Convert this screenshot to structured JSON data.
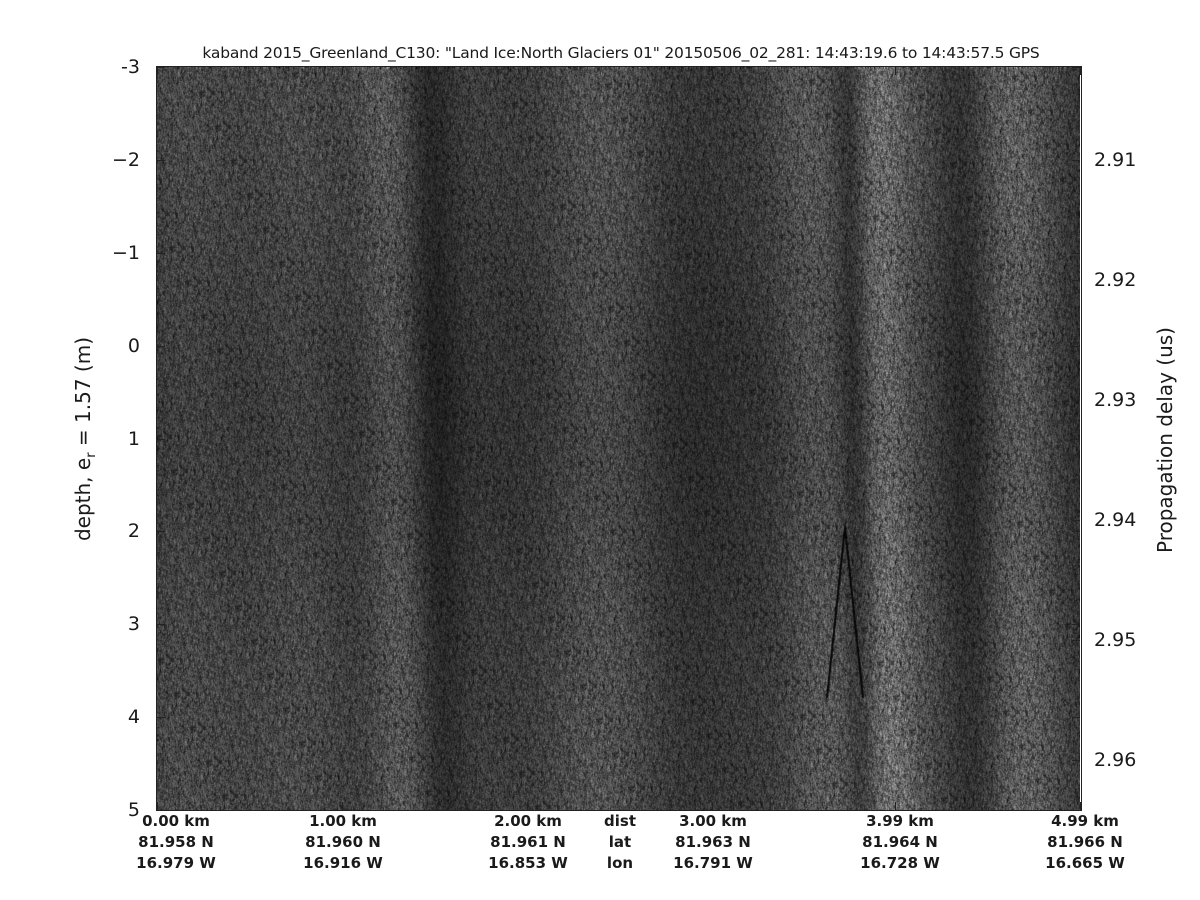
{
  "chart_data": {
    "type": "heatmap",
    "colormap": "gray",
    "title": "kaband 2015_Greenland_C130: \"Land Ice:North Glaciers 01\"  20150506_02_281: 14:43:19.6 to 14:43:57.5 GPS",
    "ylabel_left": "depth, e",
    "ylabel_left_sub": "r",
    "ylabel_left_suffix": " = 1.57 (m)",
    "ylabel_right": "Propagation delay (us)",
    "ylim_left": [
      -3,
      5
    ],
    "yticks_left": [
      "-3",
      "−2",
      "−1",
      "0",
      "1",
      "2",
      "3",
      "4",
      "5"
    ],
    "yticks_left_values": [
      -3,
      -2,
      -1,
      0,
      1,
      2,
      3,
      4,
      5
    ],
    "yticks_right": [
      "2.91",
      "2.92",
      "2.93",
      "2.94",
      "2.95",
      "2.96"
    ],
    "yticks_right_values": [
      2.91,
      2.92,
      2.93,
      2.94,
      2.95,
      2.96
    ],
    "x_rows": [
      {
        "name": "dist",
        "labels": [
          "0.00 km",
          "1.00 km",
          "2.00 km",
          "3.00 km",
          "3.99 km",
          "4.99 km"
        ]
      },
      {
        "name": "lat",
        "labels": [
          "81.958 N",
          "81.960 N",
          "81.961 N",
          "81.963 N",
          "81.964 N",
          "81.966 N"
        ]
      },
      {
        "name": "lon",
        "labels": [
          "16.979 W",
          "16.916 W",
          "16.853 W",
          "16.791 W",
          "16.728 W",
          "16.665 W"
        ]
      }
    ],
    "x_dist_km": [
      0.0,
      1.0,
      2.0,
      3.0,
      3.99,
      4.99
    ],
    "xlim_km": [
      0,
      4.99
    ],
    "grid": false
  }
}
